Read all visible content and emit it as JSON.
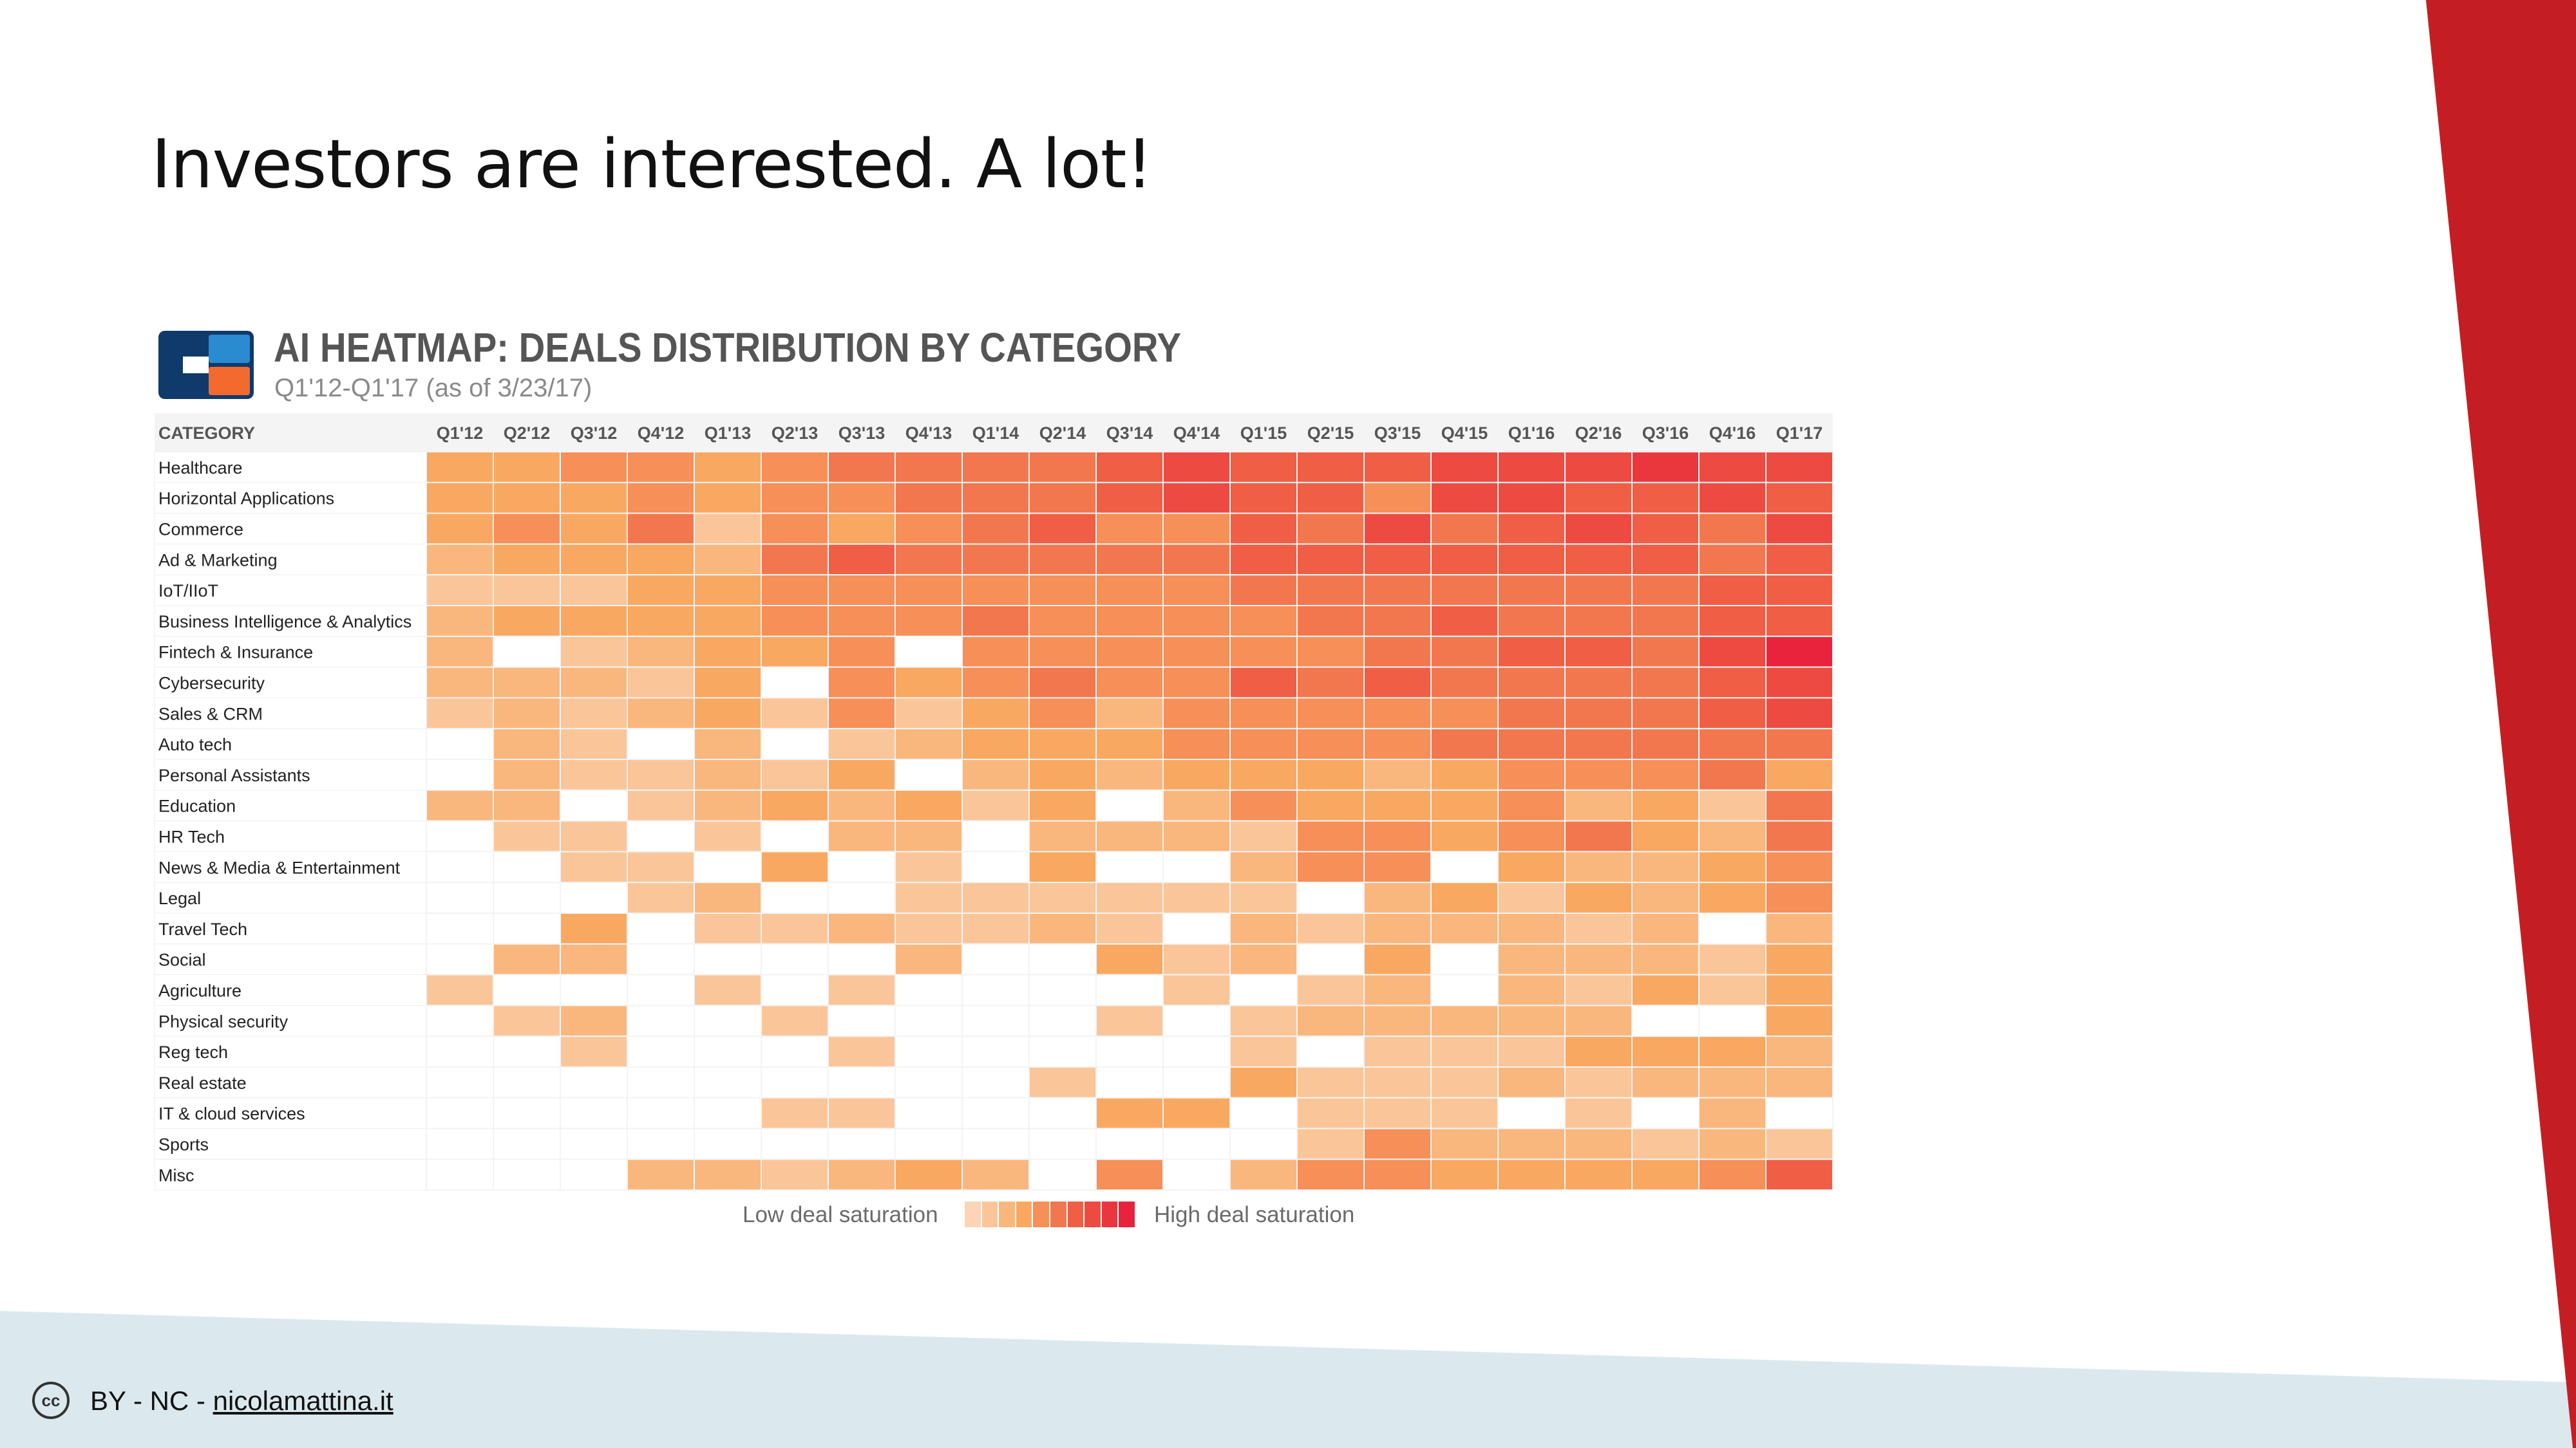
{
  "slide": {
    "title": "Investors are interested. A lot!",
    "footer_license": "BY - NC - ",
    "footer_link": "nicolamattina.it",
    "accent_color": "#c41e24",
    "footer_band_color": "#dbe9ee"
  },
  "icons": {
    "logo": "cb-insights-logo",
    "license": "creative-commons-icon"
  },
  "chart_data": {
    "type": "heatmap",
    "title": "AI HEATMAP: DEALS DISTRIBUTION BY CATEGORY",
    "subtitle": "Q1'12-Q1'17 (as of 3/23/17)",
    "row_header": "CATEGORY",
    "columns": [
      "Q1'12",
      "Q2'12",
      "Q3'12",
      "Q4'12",
      "Q1'13",
      "Q2'13",
      "Q3'13",
      "Q4'13",
      "Q1'14",
      "Q2'14",
      "Q3'14",
      "Q4'14",
      "Q1'15",
      "Q2'15",
      "Q3'15",
      "Q4'15",
      "Q1'16",
      "Q2'16",
      "Q3'16",
      "Q4'16",
      "Q1'17"
    ],
    "rows": [
      "Healthcare",
      "Horizontal Applications",
      "Commerce",
      "Ad & Marketing",
      "IoT/IIoT",
      "Business Intelligence & Analytics",
      "Fintech & Insurance",
      "Cybersecurity",
      "Sales & CRM",
      "Auto tech",
      "Personal Assistants",
      "Education",
      "HR Tech",
      "News & Media & Entertainment",
      "Legal",
      "Travel Tech",
      "Social",
      "Agriculture",
      "Physical security",
      "Reg tech",
      "Real estate",
      "IT & cloud services",
      "Sports",
      "Misc"
    ],
    "scale": "0 = no deals, 1 = low deal saturation, 10 = high deal saturation",
    "values": [
      [
        4,
        4,
        5,
        5,
        4,
        5,
        6,
        6,
        6,
        6,
        7,
        8,
        7,
        7,
        7,
        8,
        8,
        8,
        9,
        8,
        8
      ],
      [
        4,
        4,
        4,
        5,
        4,
        5,
        5,
        6,
        6,
        6,
        7,
        8,
        7,
        7,
        5,
        8,
        8,
        7,
        7,
        8,
        7
      ],
      [
        4,
        5,
        4,
        6,
        2,
        5,
        4,
        5,
        6,
        7,
        5,
        5,
        7,
        6,
        8,
        6,
        7,
        8,
        7,
        6,
        8
      ],
      [
        3,
        4,
        4,
        4,
        3,
        6,
        7,
        6,
        6,
        6,
        6,
        6,
        7,
        7,
        7,
        7,
        7,
        7,
        7,
        6,
        7
      ],
      [
        2,
        2,
        2,
        4,
        4,
        5,
        5,
        5,
        5,
        5,
        5,
        5,
        6,
        6,
        6,
        6,
        6,
        6,
        6,
        7,
        7
      ],
      [
        3,
        4,
        4,
        4,
        4,
        5,
        5,
        5,
        6,
        5,
        5,
        5,
        5,
        6,
        6,
        7,
        6,
        6,
        6,
        7,
        7
      ],
      [
        3,
        0,
        2,
        3,
        4,
        4,
        5,
        0,
        5,
        5,
        5,
        5,
        5,
        5,
        6,
        6,
        7,
        7,
        6,
        8,
        10
      ],
      [
        3,
        3,
        3,
        2,
        4,
        0,
        5,
        4,
        5,
        6,
        5,
        5,
        7,
        6,
        7,
        6,
        6,
        6,
        6,
        7,
        8
      ],
      [
        2,
        3,
        2,
        3,
        4,
        2,
        5,
        2,
        4,
        5,
        3,
        5,
        5,
        5,
        5,
        5,
        6,
        6,
        6,
        7,
        8
      ],
      [
        0,
        3,
        2,
        0,
        3,
        0,
        2,
        3,
        4,
        4,
        4,
        5,
        5,
        5,
        5,
        6,
        6,
        6,
        6,
        6,
        6
      ],
      [
        0,
        3,
        2,
        2,
        3,
        2,
        4,
        0,
        3,
        4,
        3,
        4,
        4,
        4,
        3,
        4,
        5,
        5,
        5,
        6,
        4
      ],
      [
        3,
        3,
        0,
        2,
        3,
        4,
        3,
        4,
        2,
        4,
        0,
        3,
        5,
        4,
        4,
        4,
        5,
        3,
        4,
        2,
        6
      ],
      [
        0,
        2,
        2,
        0,
        2,
        0,
        3,
        3,
        0,
        3,
        3,
        3,
        2,
        5,
        5,
        4,
        5,
        6,
        4,
        3,
        6
      ],
      [
        0,
        0,
        2,
        2,
        0,
        4,
        0,
        2,
        0,
        4,
        0,
        0,
        3,
        5,
        5,
        0,
        4,
        3,
        3,
        4,
        5
      ],
      [
        0,
        0,
        0,
        2,
        3,
        0,
        0,
        2,
        2,
        2,
        2,
        2,
        2,
        0,
        3,
        4,
        2,
        4,
        3,
        4,
        5
      ],
      [
        0,
        0,
        4,
        0,
        2,
        2,
        3,
        2,
        2,
        3,
        2,
        0,
        3,
        2,
        3,
        3,
        3,
        2,
        3,
        0,
        3
      ],
      [
        0,
        3,
        3,
        0,
        0,
        0,
        0,
        3,
        0,
        0,
        4,
        2,
        3,
        0,
        4,
        0,
        3,
        3,
        3,
        2,
        4
      ],
      [
        2,
        0,
        0,
        0,
        2,
        0,
        2,
        0,
        0,
        0,
        0,
        2,
        0,
        2,
        3,
        0,
        3,
        2,
        4,
        2,
        4
      ],
      [
        0,
        2,
        3,
        0,
        0,
        2,
        0,
        0,
        0,
        0,
        2,
        0,
        2,
        3,
        3,
        3,
        3,
        3,
        0,
        0,
        4
      ],
      [
        0,
        0,
        2,
        0,
        0,
        0,
        2,
        0,
        0,
        0,
        0,
        0,
        2,
        0,
        2,
        2,
        2,
        4,
        4,
        4,
        3
      ],
      [
        0,
        0,
        0,
        0,
        0,
        0,
        0,
        0,
        0,
        2,
        0,
        0,
        4,
        2,
        2,
        2,
        3,
        2,
        3,
        3,
        3
      ],
      [
        0,
        0,
        0,
        0,
        0,
        2,
        2,
        0,
        0,
        0,
        4,
        4,
        0,
        2,
        2,
        2,
        0,
        2,
        0,
        3,
        0
      ],
      [
        0,
        0,
        0,
        0,
        0,
        0,
        0,
        0,
        0,
        0,
        0,
        0,
        0,
        2,
        5,
        3,
        3,
        3,
        2,
        3,
        2
      ],
      [
        0,
        0,
        0,
        3,
        3,
        2,
        3,
        4,
        3,
        0,
        5,
        0,
        3,
        5,
        5,
        4,
        4,
        4,
        4,
        5,
        7
      ]
    ],
    "legend": {
      "low_label": "Low deal saturation",
      "high_label": "High deal saturation",
      "low_color": "#fbd5b5",
      "high_color": "#e8233b"
    }
  }
}
